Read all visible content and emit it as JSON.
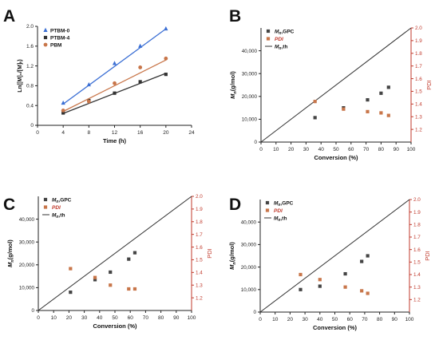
{
  "chart_data": [
    {
      "panel": "A",
      "type": "scatter",
      "xlabel": "Time (h)",
      "ylabel": "Ln([M]₀/[M]ₜ)",
      "xlim": [
        0,
        24
      ],
      "ylim": [
        0,
        2.0
      ],
      "xticks": [
        "0",
        "4",
        "8",
        "12",
        "16",
        "20",
        "24"
      ],
      "yticks": [
        "0",
        "0.4",
        "0.8",
        "1.2",
        "1.6",
        "2.0"
      ],
      "legend_position": "top-left",
      "series": [
        {
          "name": "PTBM-0",
          "color": "#3b6fd4",
          "marker": "triangle",
          "x": [
            4,
            8,
            12,
            16,
            20
          ],
          "y": [
            0.45,
            0.82,
            1.25,
            1.6,
            1.95
          ],
          "fit": [
            [
              4,
              0.43
            ],
            [
              20,
              1.95
            ]
          ]
        },
        {
          "name": "PTBM-4",
          "color": "#333333",
          "marker": "square",
          "x": [
            4,
            8,
            12,
            16,
            20
          ],
          "y": [
            0.25,
            0.5,
            0.65,
            0.88,
            1.03
          ],
          "fit": [
            [
              4,
              0.24
            ],
            [
              20,
              1.05
            ]
          ]
        },
        {
          "name": "PBM",
          "color": "#c8764a",
          "marker": "circle",
          "x": [
            4,
            8,
            12,
            16,
            20
          ],
          "y": [
            0.3,
            0.48,
            0.85,
            1.17,
            1.35
          ],
          "fit": [
            [
              4,
              0.28
            ],
            [
              20,
              1.32
            ]
          ]
        }
      ]
    },
    {
      "panel": "B",
      "type": "scatter",
      "xlabel": "Conversion (%)",
      "ylabel_left": "Mn(g/mol)",
      "ylabel_right": "PDI",
      "xlim": [
        0,
        100
      ],
      "ylim_left": [
        0,
        50000
      ],
      "ylim_right": [
        1.1,
        2.0
      ],
      "xticks": [
        "0",
        "10",
        "20",
        "30",
        "40",
        "50",
        "60",
        "70",
        "80",
        "90",
        "100"
      ],
      "yticks_left": [
        "0",
        "10,000",
        "20,000",
        "30,000",
        "40,000"
      ],
      "yticks_right": [
        "1.2",
        "1.3",
        "1.4",
        "1.5",
        "1.6",
        "1.7",
        "1.8",
        "1.9",
        "2.0"
      ],
      "legend": [
        {
          "text": "Mn,GPC",
          "kind": "square"
        },
        {
          "text": "PDI",
          "kind": "circle"
        },
        {
          "text": "Mn,th",
          "kind": "line"
        }
      ],
      "theory_line": [
        [
          0,
          0
        ],
        [
          100,
          50000
        ]
      ],
      "mn_gpc": {
        "x": [
          36,
          55,
          71,
          80,
          85
        ],
        "y": [
          10700,
          15000,
          18500,
          21400,
          24000
        ]
      },
      "pdi": {
        "x": [
          36,
          55,
          71,
          80,
          85
        ],
        "y": [
          1.42,
          1.36,
          1.34,
          1.33,
          1.31
        ]
      }
    },
    {
      "panel": "C",
      "type": "scatter",
      "xlabel": "Conversion (%)",
      "ylabel_left": "Mn(g/mol)",
      "ylabel_right": "PDI",
      "xlim": [
        0,
        100
      ],
      "ylim_left": [
        0,
        50000
      ],
      "ylim_right": [
        1.1,
        2.0
      ],
      "xticks": [
        "0",
        "10",
        "20",
        "30",
        "40",
        "50",
        "60",
        "70",
        "80",
        "90",
        "100"
      ],
      "yticks_left": [
        "0",
        "10,000",
        "20,000",
        "30,000",
        "40,000"
      ],
      "yticks_right": [
        "1.2",
        "1.3",
        "1.4",
        "1.5",
        "1.6",
        "1.7",
        "1.8",
        "1.9",
        "2.0"
      ],
      "legend": [
        {
          "text": "Mn,GPC",
          "kind": "square"
        },
        {
          "text": "PDI",
          "kind": "circle"
        },
        {
          "text": "Mn,th",
          "kind": "line"
        }
      ],
      "theory_line": [
        [
          0,
          0
        ],
        [
          100,
          50000
        ]
      ],
      "mn_gpc": {
        "x": [
          21,
          37,
          47,
          59,
          63
        ],
        "y": [
          8000,
          13500,
          16800,
          22500,
          25300
        ]
      },
      "pdi": {
        "x": [
          21,
          37,
          47,
          59,
          63
        ],
        "y": [
          1.43,
          1.36,
          1.3,
          1.27,
          1.27
        ]
      }
    },
    {
      "panel": "D",
      "type": "scatter",
      "xlabel": "Conversion (%)",
      "ylabel_left": "Mn(g/mol)",
      "ylabel_right": "PDI",
      "xlim": [
        0,
        100
      ],
      "ylim_left": [
        0,
        50000
      ],
      "ylim_right": [
        1.1,
        2.0
      ],
      "xticks": [
        "0",
        "10",
        "20",
        "30",
        "40",
        "50",
        "60",
        "70",
        "80",
        "90",
        "100"
      ],
      "yticks_left": [
        "0",
        "10,000",
        "20,000",
        "30,000",
        "40,000"
      ],
      "yticks_right": [
        "1.2",
        "1.3",
        "1.4",
        "1.5",
        "1.6",
        "1.7",
        "1.8",
        "1.9",
        "2.0"
      ],
      "legend": [
        {
          "text": "Mn,GPC",
          "kind": "square"
        },
        {
          "text": "PDI",
          "kind": "circle"
        },
        {
          "text": "Mn,th",
          "kind": "line"
        }
      ],
      "theory_line": [
        [
          0,
          0
        ],
        [
          100,
          50000
        ]
      ],
      "mn_gpc": {
        "x": [
          27,
          40,
          57,
          68,
          72
        ],
        "y": [
          10000,
          11500,
          17000,
          22500,
          25000
        ]
      },
      "pdi": {
        "x": [
          27,
          40,
          57,
          68,
          72
        ],
        "y": [
          1.4,
          1.36,
          1.3,
          1.27,
          1.25
        ]
      }
    }
  ]
}
